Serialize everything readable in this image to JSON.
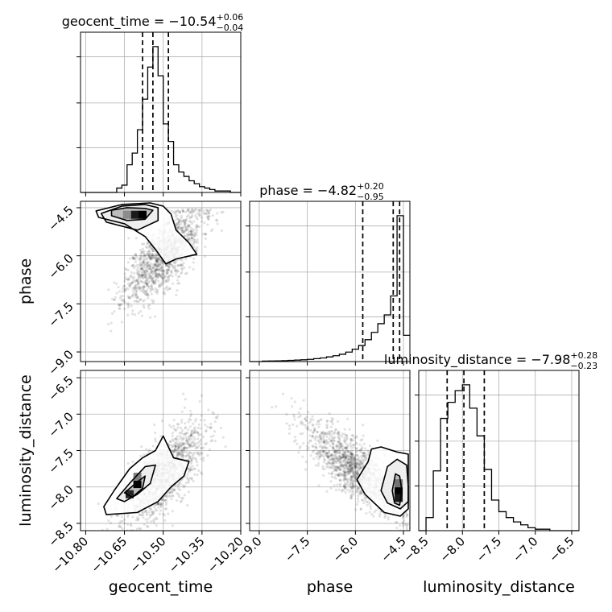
{
  "chart_data": {
    "type": "corner",
    "grid": true,
    "parameters": [
      {
        "name": "geocent_time",
        "title": {
          "prefix": "geocent_time = ",
          "median": "−10.54",
          "plus": "+0.06",
          "minus": "−0.04"
        },
        "range": [
          -10.82,
          -10.2
        ],
        "ticks": [
          -10.8,
          -10.65,
          -10.5,
          -10.35,
          -10.2
        ],
        "tick_labels": [
          "−10.80",
          "−10.65",
          "−10.50",
          "−10.35",
          "−10.20"
        ],
        "quantiles": [
          -10.58,
          -10.54,
          -10.48
        ],
        "histogram": {
          "edges": [
            -10.82,
            -10.8,
            -10.78,
            -10.76,
            -10.74,
            -10.72,
            -10.7,
            -10.68,
            -10.66,
            -10.64,
            -10.62,
            -10.6,
            -10.58,
            -10.56,
            -10.54,
            -10.52,
            -10.5,
            -10.48,
            -10.46,
            -10.44,
            -10.42,
            -10.4,
            -10.38,
            -10.36,
            -10.34,
            -10.32,
            -10.3,
            -10.28,
            -10.26,
            -10.24,
            -10.22,
            -10.2
          ],
          "counts": [
            0,
            0,
            0,
            0,
            0,
            0,
            0,
            0.03,
            0.05,
            0.19,
            0.27,
            0.43,
            0.64,
            0.86,
            1.0,
            0.8,
            0.47,
            0.35,
            0.19,
            0.14,
            0.11,
            0.08,
            0.06,
            0.04,
            0.03,
            0.02,
            0.01,
            0.01,
            0.01,
            0,
            0
          ]
        }
      },
      {
        "name": "phase",
        "title": {
          "prefix": "phase = ",
          "median": "−4.82",
          "plus": "+0.20",
          "minus": "−0.95"
        },
        "range": [
          -9.3,
          -4.3
        ],
        "ticks": [
          -9.0,
          -7.5,
          -6.0,
          -4.5
        ],
        "tick_labels": [
          "−9.0",
          "−7.5",
          "−6.0",
          "−4.5"
        ],
        "quantiles": [
          -5.77,
          -4.82,
          -4.62
        ],
        "histogram": {
          "edges": [
            -9.3,
            -9.1,
            -8.9,
            -8.7,
            -8.5,
            -8.3,
            -8.1,
            -7.9,
            -7.7,
            -7.5,
            -7.3,
            -7.1,
            -6.9,
            -6.7,
            -6.5,
            -6.3,
            -6.1,
            -5.9,
            -5.7,
            -5.5,
            -5.3,
            -5.1,
            -4.9,
            -4.7,
            -4.5,
            -4.3
          ],
          "counts": [
            0,
            0,
            0.003,
            0.004,
            0.005,
            0.006,
            0.008,
            0.01,
            0.012,
            0.015,
            0.02,
            0.025,
            0.032,
            0.04,
            0.05,
            0.065,
            0.085,
            0.11,
            0.15,
            0.2,
            0.26,
            0.32,
            0.45,
            1.0,
            0.18
          ]
        }
      },
      {
        "name": "luminosity_distance",
        "title": {
          "prefix": "luminosity_distance = ",
          "median": "−7.98",
          "plus": "+0.28",
          "minus": "−0.23"
        },
        "range": [
          -8.6,
          -6.4
        ],
        "ticks": [
          -8.5,
          -8.0,
          -7.5,
          -7.0,
          -6.5
        ],
        "tick_labels": [
          "−8.5",
          "−8.0",
          "−7.5",
          "−7.0",
          "−6.5"
        ],
        "quantiles": [
          -8.21,
          -7.98,
          -7.7
        ],
        "histogram": {
          "edges": [
            -8.6,
            -8.5,
            -8.4,
            -8.3,
            -8.2,
            -8.1,
            -8.0,
            -7.9,
            -7.8,
            -7.7,
            -7.6,
            -7.5,
            -7.4,
            -7.3,
            -7.2,
            -7.1,
            -7.0,
            -6.9,
            -6.8,
            -6.7,
            -6.6,
            -6.5,
            -6.4
          ],
          "counts": [
            0,
            0.09,
            0.41,
            0.77,
            0.88,
            0.96,
            1.0,
            0.84,
            0.65,
            0.42,
            0.21,
            0.13,
            0.09,
            0.06,
            0.04,
            0.02,
            0.01,
            0.01,
            0,
            0,
            0,
            0
          ]
        }
      }
    ],
    "pairs": [
      {
        "x": "geocent_time",
        "y": "phase",
        "scatter": {
          "n": 1300,
          "center": [
            -10.5,
            -6.0
          ],
          "sd": [
            0.075,
            0.75
          ],
          "corr": 0.72,
          "seed": 11,
          "clip_y_max": -4.55
        },
        "density_cells": [
          [
            -10.61,
            -4.72,
            0.9
          ],
          [
            -10.58,
            -4.72,
            1.0
          ],
          [
            -10.64,
            -4.72,
            0.45
          ]
        ],
        "contours": [
          [
            [
              -10.7,
              -4.58
            ],
            [
              -10.64,
              -4.5
            ],
            [
              -10.57,
              -4.52
            ],
            [
              -10.54,
              -4.58
            ],
            [
              -10.57,
              -4.86
            ],
            [
              -10.64,
              -4.9
            ],
            [
              -10.7,
              -4.75
            ]
          ],
          [
            [
              -10.74,
              -4.68
            ],
            [
              -10.66,
              -4.45
            ],
            [
              -10.57,
              -4.4
            ],
            [
              -10.52,
              -4.5
            ],
            [
              -10.52,
              -4.9
            ],
            [
              -10.6,
              -5.2
            ],
            [
              -10.72,
              -4.95
            ]
          ],
          [
            [
              -10.76,
              -4.6
            ],
            [
              -10.66,
              -4.4
            ],
            [
              -10.55,
              -4.35
            ],
            [
              -10.5,
              -4.45
            ],
            [
              -10.47,
              -4.7
            ],
            [
              -10.45,
              -5.2
            ],
            [
              -10.4,
              -5.6
            ],
            [
              -10.37,
              -5.95
            ],
            [
              -10.45,
              -6.1
            ],
            [
              -10.49,
              -6.25
            ],
            [
              -10.53,
              -5.8
            ],
            [
              -10.57,
              -5.4
            ],
            [
              -10.65,
              -5.0
            ],
            [
              -10.75,
              -4.8
            ]
          ]
        ]
      },
      {
        "x": "geocent_time",
        "y": "luminosity_distance",
        "scatter": {
          "n": 1300,
          "center": [
            -10.5,
            -7.85
          ],
          "sd": [
            0.08,
            0.35
          ],
          "corr": 0.7,
          "seed": 23,
          "clip_y_max": -6.4
        },
        "density_cells": [
          [
            -10.6,
            -7.96,
            1.0
          ],
          [
            -10.63,
            -8.1,
            0.85
          ],
          [
            -10.6,
            -7.86,
            0.5
          ]
        ],
        "contours": [
          [
            [
              -10.65,
              -8.08
            ],
            [
              -10.6,
              -7.93
            ],
            [
              -10.57,
              -7.85
            ],
            [
              -10.58,
              -8.02
            ],
            [
              -10.62,
              -8.14
            ]
          ],
          [
            [
              -10.68,
              -8.16
            ],
            [
              -10.63,
              -7.95
            ],
            [
              -10.57,
              -7.72
            ],
            [
              -10.53,
              -7.7
            ],
            [
              -10.55,
              -7.95
            ],
            [
              -10.6,
              -8.1
            ],
            [
              -10.65,
              -8.2
            ]
          ],
          [
            [
              -10.73,
              -8.27
            ],
            [
              -10.69,
              -8.05
            ],
            [
              -10.63,
              -7.75
            ],
            [
              -10.58,
              -7.6
            ],
            [
              -10.53,
              -7.5
            ],
            [
              -10.5,
              -7.3
            ],
            [
              -10.48,
              -7.45
            ],
            [
              -10.46,
              -7.6
            ],
            [
              -10.4,
              -7.65
            ],
            [
              -10.42,
              -7.85
            ],
            [
              -10.47,
              -8.0
            ],
            [
              -10.52,
              -8.2
            ],
            [
              -10.6,
              -8.35
            ],
            [
              -10.72,
              -8.38
            ]
          ]
        ]
      },
      {
        "x": "phase",
        "y": "luminosity_distance",
        "scatter": {
          "n": 1400,
          "center": [
            -6.0,
            -7.75
          ],
          "sd": [
            0.8,
            0.32
          ],
          "corr": -0.78,
          "seed": 37,
          "clip_x_max": -4.35
        },
        "density_cells": [
          [
            -4.65,
            -8.05,
            1.0
          ],
          [
            -4.65,
            -8.15,
            0.9
          ],
          [
            -4.65,
            -7.95,
            0.55
          ]
        ],
        "contours": [
          [
            [
              -4.85,
              -8.05
            ],
            [
              -4.75,
              -7.82
            ],
            [
              -4.62,
              -7.85
            ],
            [
              -4.55,
              -8.05
            ],
            [
              -4.62,
              -8.25
            ],
            [
              -4.78,
              -8.22
            ]
          ],
          [
            [
              -5.2,
              -8.05
            ],
            [
              -5.0,
              -7.72
            ],
            [
              -4.7,
              -7.62
            ],
            [
              -4.4,
              -7.7
            ],
            [
              -4.35,
              -8.0
            ],
            [
              -4.35,
              -8.2
            ],
            [
              -4.6,
              -8.3
            ],
            [
              -5.0,
              -8.22
            ]
          ],
          [
            [
              -5.6,
              -7.65
            ],
            [
              -5.5,
              -7.48
            ],
            [
              -5.2,
              -7.45
            ],
            [
              -4.7,
              -7.52
            ],
            [
              -4.35,
              -7.55
            ],
            [
              -4.35,
              -8.3
            ],
            [
              -4.6,
              -8.4
            ],
            [
              -5.1,
              -8.35
            ],
            [
              -5.7,
              -8.1
            ],
            [
              -5.95,
              -7.9
            ]
          ]
        ]
      }
    ]
  }
}
